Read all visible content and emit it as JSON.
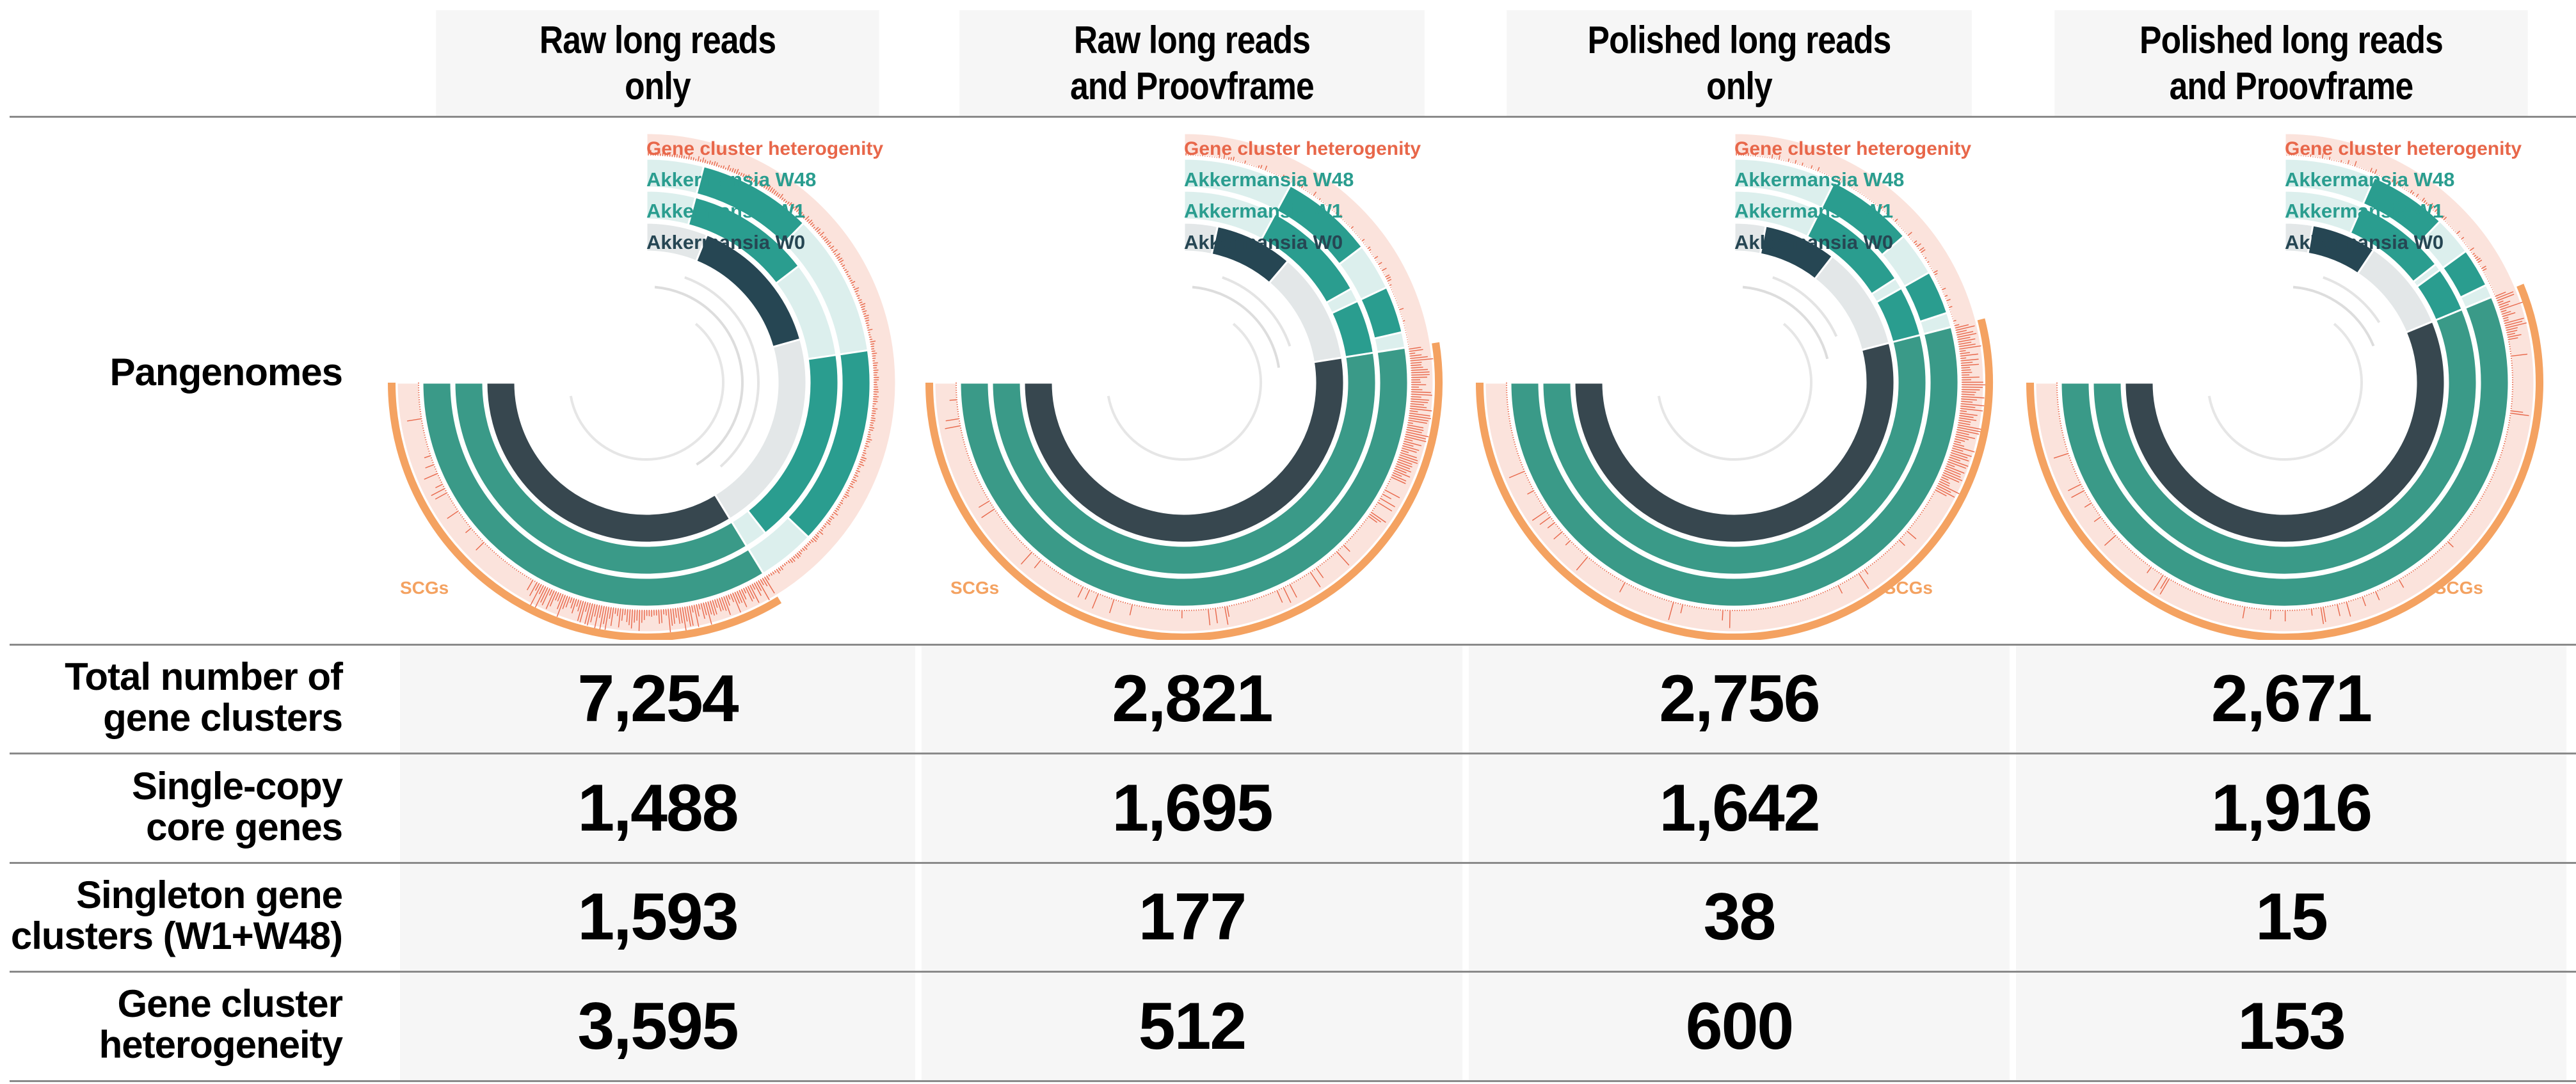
{
  "columns": [
    {
      "line1": "Raw long reads",
      "line2": "only"
    },
    {
      "line1": "Raw long reads",
      "line2": "and Proovframe"
    },
    {
      "line1": "Polished long reads",
      "line2": "only"
    },
    {
      "line1": "Polished long reads",
      "line2": "and Proovframe"
    }
  ],
  "rows": [
    {
      "label1": "Pangenomes",
      "label2": ""
    },
    {
      "label1": "Total number of",
      "label2": "gene clusters"
    },
    {
      "label1": "Single-copy",
      "label2": "core genes"
    },
    {
      "label1": "Singleton gene",
      "label2": "clusters (W1+W48)"
    },
    {
      "label1": "Gene cluster",
      "label2": "heterogeneity"
    }
  ],
  "values": [
    [
      "7,254",
      "2,821",
      "2,756",
      "2,671"
    ],
    [
      "1,488",
      "1,695",
      "1,642",
      "1,916"
    ],
    [
      "1,593",
      "177",
      "38",
      "15"
    ],
    [
      "3,595",
      "512",
      "600",
      "153"
    ]
  ],
  "layer_labels": {
    "heterogeneity": "Gene cluster heterogenity",
    "w48": "Akkermansia W48",
    "w1": "Akkermansia W1",
    "w0": "Akkermansia W0",
    "scg": "SCGs"
  },
  "colors": {
    "heterogeneity": "#e8674a",
    "heterogeneity_bg": "#fbe3dc",
    "w48": "#2a9d8f",
    "w1": "#2a9d8f",
    "w0": "#264653",
    "core_dark": "#37474f",
    "light_teal": "#dcefed",
    "scg": "#f4a261"
  },
  "chart_data": {
    "type": "table",
    "columns": [
      "Raw long reads only",
      "Raw long reads and Proovframe",
      "Polished long reads only",
      "Polished long reads and Proovframe"
    ],
    "rows": [
      "Total number of gene clusters",
      "Single-copy core genes",
      "Singleton gene clusters (W1+W48)",
      "Gene cluster heterogeneity"
    ],
    "values": [
      [
        7254,
        2821,
        2756,
        2671
      ],
      [
        1488,
        1695,
        1642,
        1916
      ],
      [
        1593,
        177,
        38,
        15
      ],
      [
        3595,
        512,
        600,
        153
      ]
    ],
    "pangenome_core_fraction": [
      0.45,
      0.7,
      0.72,
      0.75
    ],
    "pangenome_heterogeneity_fraction": [
      0.5,
      0.18,
      0.22,
      0.06
    ]
  }
}
